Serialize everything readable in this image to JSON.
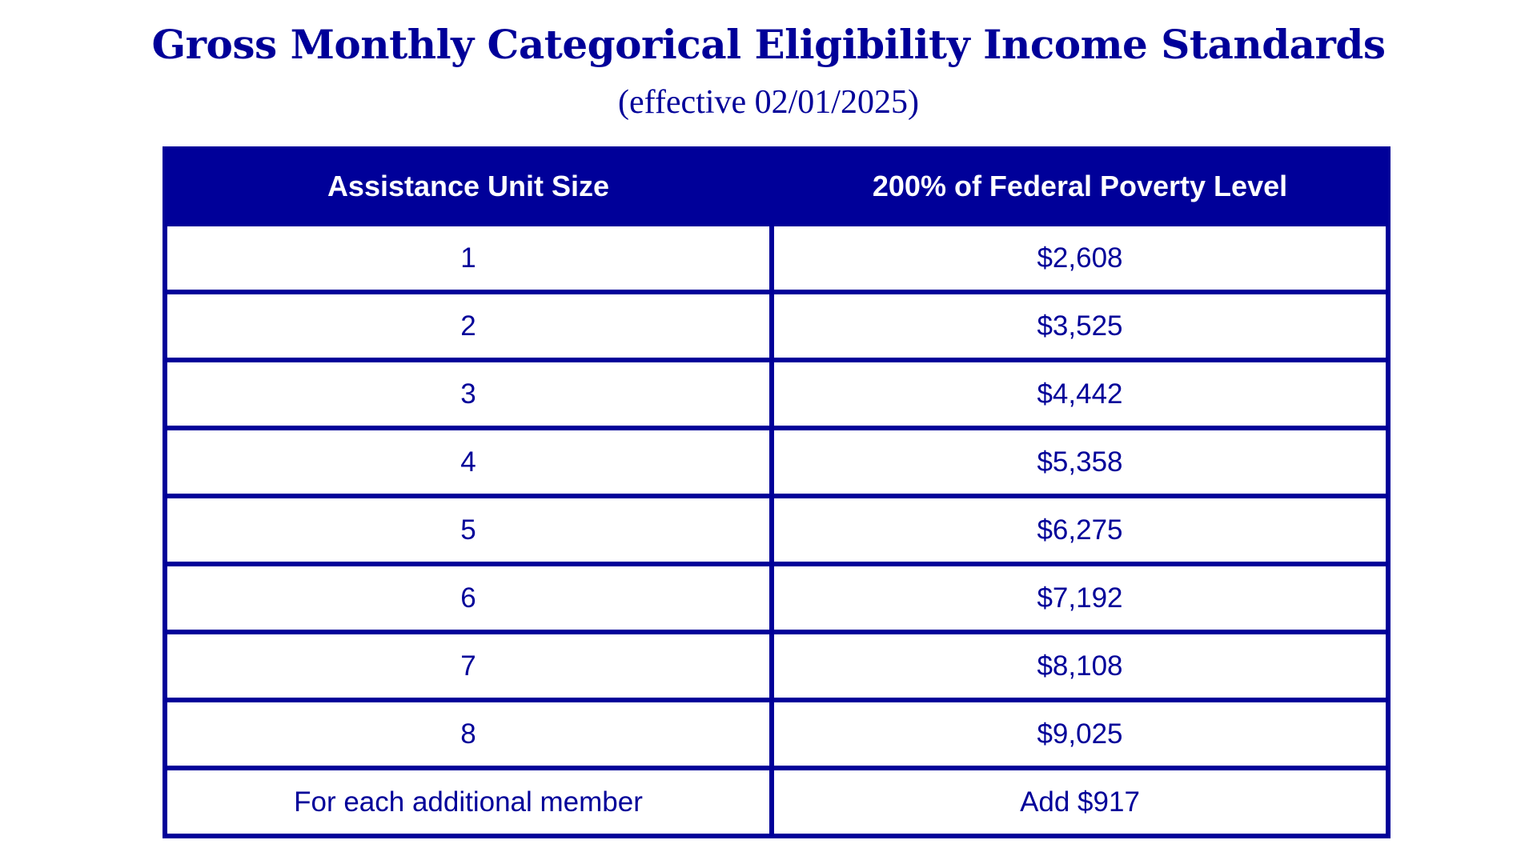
{
  "title": "Gross Monthly Categorical Eligibility Income Standards",
  "subtitle": "(effective 02/01/2025)",
  "table": {
    "headers": [
      "Assistance Unit Size",
      "200% of Federal Poverty Level"
    ],
    "rows": [
      [
        "1",
        "$2,608"
      ],
      [
        "2",
        "$3,525"
      ],
      [
        "3",
        "$4,442"
      ],
      [
        "4",
        "$5,358"
      ],
      [
        "5",
        "$6,275"
      ],
      [
        "6",
        "$7,192"
      ],
      [
        "7",
        "$8,108"
      ],
      [
        "8",
        "$9,025"
      ],
      [
        "For each additional member",
        "Add $917"
      ]
    ]
  },
  "colors": {
    "primary": "#000099",
    "background": "#ffffff"
  }
}
